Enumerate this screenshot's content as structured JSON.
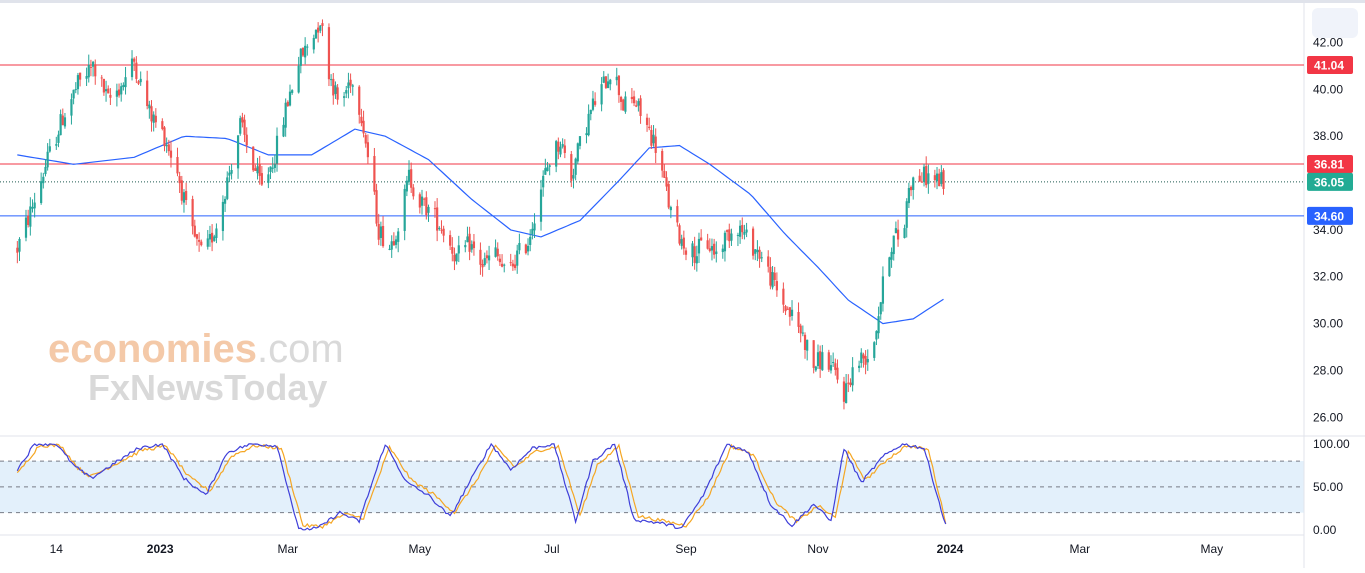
{
  "chart_data": {
    "type": "candlestick",
    "title": "",
    "price_axis": {
      "ticks": [
        "42.00",
        "40.00",
        "38.00",
        "36.00",
        "34.00",
        "32.00",
        "30.00",
        "28.00",
        "26.00"
      ],
      "tick_values": [
        42,
        40,
        38,
        36,
        34,
        32,
        30,
        28,
        26
      ],
      "ylim": [
        25.2,
        43.6
      ]
    },
    "horizontal_levels": [
      {
        "value": 41.04,
        "label": "41.04",
        "color": "#f23645"
      },
      {
        "value": 36.81,
        "label": "36.81",
        "color": "#f23645"
      },
      {
        "value": 34.6,
        "label": "34.60",
        "color": "#2962ff"
      }
    ],
    "last_price": {
      "value": 36.05,
      "label": "36.05",
      "color": "#22ab94"
    },
    "x_axis": {
      "labels": [
        {
          "text": "14",
          "date": "2022-11-14",
          "bold": false
        },
        {
          "text": "2023",
          "date": "2023-01-01",
          "bold": true
        },
        {
          "text": "Mar",
          "date": "2023-03-01",
          "bold": false
        },
        {
          "text": "May",
          "date": "2023-05-01",
          "bold": false
        },
        {
          "text": "Jul",
          "date": "2023-07-01",
          "bold": false
        },
        {
          "text": "Sep",
          "date": "2023-09-01",
          "bold": false
        },
        {
          "text": "Nov",
          "date": "2023-11-01",
          "bold": false
        },
        {
          "text": "2024",
          "date": "2024-01-01",
          "bold": true
        },
        {
          "text": "Mar",
          "date": "2024-03-01",
          "bold": false
        },
        {
          "text": "May",
          "date": "2024-05-01",
          "bold": false
        }
      ]
    },
    "price_path": [
      [
        "2022-10-27",
        33.2
      ],
      [
        "2022-11-03",
        35.0
      ],
      [
        "2022-11-10",
        37.0
      ],
      [
        "2022-11-17",
        38.8
      ],
      [
        "2022-11-24",
        40.2
      ],
      [
        "2022-12-01",
        41.0
      ],
      [
        "2022-12-08",
        39.5
      ],
      [
        "2022-12-15",
        40.3
      ],
      [
        "2022-12-20",
        41.2
      ],
      [
        "2022-12-27",
        39.0
      ],
      [
        "2023-01-03",
        38.0
      ],
      [
        "2023-01-09",
        36.5
      ],
      [
        "2023-01-15",
        34.0
      ],
      [
        "2023-01-21",
        32.8
      ],
      [
        "2023-01-27",
        34.2
      ],
      [
        "2023-02-02",
        36.5
      ],
      [
        "2023-02-07",
        38.5
      ],
      [
        "2023-02-12",
        37.0
      ],
      [
        "2023-02-17",
        35.8
      ],
      [
        "2023-02-23",
        37.2
      ],
      [
        "2023-03-01",
        39.5
      ],
      [
        "2023-03-06",
        41.2
      ],
      [
        "2023-03-11",
        42.0
      ],
      [
        "2023-03-16",
        43.0
      ],
      [
        "2023-03-20",
        40.8
      ],
      [
        "2023-03-25",
        39.2
      ],
      [
        "2023-03-30",
        40.5
      ],
      [
        "2023-04-04",
        39.0
      ],
      [
        "2023-04-08",
        36.5
      ],
      [
        "2023-04-12",
        34.0
      ],
      [
        "2023-04-17",
        33.3
      ],
      [
        "2023-04-22",
        34.5
      ],
      [
        "2023-04-26",
        36.3
      ],
      [
        "2023-05-01",
        35.2
      ],
      [
        "2023-05-06",
        34.8
      ],
      [
        "2023-05-12",
        34.0
      ],
      [
        "2023-05-18",
        32.8
      ],
      [
        "2023-05-24",
        33.4
      ],
      [
        "2023-05-30",
        32.5
      ],
      [
        "2023-06-05",
        33.0
      ],
      [
        "2023-06-10",
        32.0
      ],
      [
        "2023-06-15",
        32.9
      ],
      [
        "2023-06-20",
        33.5
      ],
      [
        "2023-06-25",
        35.5
      ],
      [
        "2023-06-30",
        37.0
      ],
      [
        "2023-07-05",
        37.8
      ],
      [
        "2023-07-10",
        36.3
      ],
      [
        "2023-07-15",
        38.0
      ],
      [
        "2023-07-20",
        39.3
      ],
      [
        "2023-07-25",
        40.2
      ],
      [
        "2023-07-29",
        41.0
      ],
      [
        "2023-08-03",
        39.3
      ],
      [
        "2023-08-08",
        39.5
      ],
      [
        "2023-08-13",
        38.6
      ],
      [
        "2023-08-18",
        37.6
      ],
      [
        "2023-08-22",
        36.0
      ],
      [
        "2023-08-26",
        34.3
      ],
      [
        "2023-08-31",
        33.4
      ],
      [
        "2023-09-05",
        33.0
      ],
      [
        "2023-09-10",
        33.5
      ],
      [
        "2023-09-15",
        33.0
      ],
      [
        "2023-09-20",
        33.8
      ],
      [
        "2023-09-25",
        34.2
      ],
      [
        "2023-09-30",
        33.5
      ],
      [
        "2023-10-05",
        33.0
      ],
      [
        "2023-10-10",
        32.0
      ],
      [
        "2023-10-15",
        31.0
      ],
      [
        "2023-10-20",
        30.3
      ],
      [
        "2023-10-25",
        29.5
      ],
      [
        "2023-10-30",
        28.2
      ],
      [
        "2023-11-04",
        28.6
      ],
      [
        "2023-11-09",
        27.8
      ],
      [
        "2023-11-13",
        27.0
      ],
      [
        "2023-11-17",
        28.0
      ],
      [
        "2023-11-21",
        28.5
      ],
      [
        "2023-11-26",
        28.8
      ],
      [
        "2023-12-01",
        31.6
      ],
      [
        "2023-12-04",
        33.2
      ],
      [
        "2023-12-07",
        33.8
      ],
      [
        "2023-12-10",
        33.4
      ],
      [
        "2023-12-13",
        36.0
      ],
      [
        "2023-12-17",
        36.2
      ],
      [
        "2023-12-21",
        36.3
      ],
      [
        "2023-12-25",
        36.2
      ],
      [
        "2023-12-29",
        36.05
      ]
    ],
    "moving_average": [
      [
        "2022-10-27",
        37.2
      ],
      [
        "2022-11-22",
        36.8
      ],
      [
        "2022-12-20",
        37.1
      ],
      [
        "2023-01-12",
        38.0
      ],
      [
        "2023-02-01",
        37.9
      ],
      [
        "2023-02-20",
        37.2
      ],
      [
        "2023-03-12",
        37.2
      ],
      [
        "2023-04-01",
        38.3
      ],
      [
        "2023-04-15",
        38.0
      ],
      [
        "2023-05-05",
        37.0
      ],
      [
        "2023-05-25",
        35.3
      ],
      [
        "2023-06-12",
        34.0
      ],
      [
        "2023-06-26",
        33.7
      ],
      [
        "2023-07-14",
        34.4
      ],
      [
        "2023-08-01",
        36.1
      ],
      [
        "2023-08-15",
        37.5
      ],
      [
        "2023-08-29",
        37.6
      ],
      [
        "2023-09-12",
        36.8
      ],
      [
        "2023-10-01",
        35.5
      ],
      [
        "2023-10-17",
        33.8
      ],
      [
        "2023-11-01",
        32.4
      ],
      [
        "2023-11-15",
        31.0
      ],
      [
        "2023-12-01",
        30.0
      ],
      [
        "2023-12-15",
        30.2
      ],
      [
        "2023-12-30",
        31.1
      ]
    ],
    "oscillator": {
      "ticks": [
        "100.00",
        "50.00",
        "0.00"
      ],
      "tick_values": [
        100,
        50,
        0
      ],
      "ylim": [
        -6,
        108
      ],
      "bands": [
        20,
        50,
        80
      ],
      "fast_line": [
        [
          "2022-10-27",
          70
        ],
        [
          "2022-11-04",
          100
        ],
        [
          "2022-11-14",
          100
        ],
        [
          "2022-11-22",
          75
        ],
        [
          "2022-11-30",
          60
        ],
        [
          "2022-12-22",
          95
        ],
        [
          "2023-01-02",
          100
        ],
        [
          "2023-01-12",
          60
        ],
        [
          "2023-01-22",
          40
        ],
        [
          "2023-02-01",
          90
        ],
        [
          "2023-02-12",
          100
        ],
        [
          "2023-02-24",
          98
        ],
        [
          "2023-03-06",
          0
        ],
        [
          "2023-03-15",
          2
        ],
        [
          "2023-03-25",
          20
        ],
        [
          "2023-04-03",
          10
        ],
        [
          "2023-04-15",
          100
        ],
        [
          "2023-04-25",
          55
        ],
        [
          "2023-05-05",
          40
        ],
        [
          "2023-05-15",
          15
        ],
        [
          "2023-05-25",
          60
        ],
        [
          "2023-06-03",
          100
        ],
        [
          "2023-06-12",
          70
        ],
        [
          "2023-06-22",
          95
        ],
        [
          "2023-07-02",
          100
        ],
        [
          "2023-07-12",
          10
        ],
        [
          "2023-07-20",
          80
        ],
        [
          "2023-07-30",
          100
        ],
        [
          "2023-08-08",
          12
        ],
        [
          "2023-08-20",
          8
        ],
        [
          "2023-08-30",
          2
        ],
        [
          "2023-09-09",
          40
        ],
        [
          "2023-09-20",
          100
        ],
        [
          "2023-09-30",
          90
        ],
        [
          "2023-10-10",
          30
        ],
        [
          "2023-10-20",
          5
        ],
        [
          "2023-10-30",
          30
        ],
        [
          "2023-11-07",
          10
        ],
        [
          "2023-11-13",
          95
        ],
        [
          "2023-11-21",
          55
        ],
        [
          "2023-12-01",
          85
        ],
        [
          "2023-12-10",
          100
        ],
        [
          "2023-12-20",
          95
        ],
        [
          "2023-12-30",
          5
        ]
      ],
      "slow_line": [
        [
          "2022-10-27",
          65
        ],
        [
          "2022-11-06",
          98
        ],
        [
          "2022-11-16",
          98
        ],
        [
          "2022-11-24",
          72
        ],
        [
          "2022-11-30",
          62
        ],
        [
          "2022-12-24",
          93
        ],
        [
          "2023-01-04",
          97
        ],
        [
          "2023-01-14",
          62
        ],
        [
          "2023-01-24",
          45
        ],
        [
          "2023-02-03",
          86
        ],
        [
          "2023-02-14",
          98
        ],
        [
          "2023-02-26",
          95
        ],
        [
          "2023-03-08",
          5
        ],
        [
          "2023-03-17",
          4
        ],
        [
          "2023-03-27",
          18
        ],
        [
          "2023-04-05",
          14
        ],
        [
          "2023-04-17",
          96
        ],
        [
          "2023-04-27",
          58
        ],
        [
          "2023-05-07",
          42
        ],
        [
          "2023-05-17",
          20
        ],
        [
          "2023-05-27",
          57
        ],
        [
          "2023-06-05",
          97
        ],
        [
          "2023-06-14",
          73
        ],
        [
          "2023-06-24",
          92
        ],
        [
          "2023-07-04",
          97
        ],
        [
          "2023-07-14",
          16
        ],
        [
          "2023-07-22",
          76
        ],
        [
          "2023-08-01",
          97
        ],
        [
          "2023-08-10",
          16
        ],
        [
          "2023-08-22",
          10
        ],
        [
          "2023-09-01",
          5
        ],
        [
          "2023-09-11",
          37
        ],
        [
          "2023-09-22",
          97
        ],
        [
          "2023-10-02",
          88
        ],
        [
          "2023-10-12",
          34
        ],
        [
          "2023-10-22",
          9
        ],
        [
          "2023-11-01",
          28
        ],
        [
          "2023-11-09",
          14
        ],
        [
          "2023-11-15",
          90
        ],
        [
          "2023-11-23",
          58
        ],
        [
          "2023-12-03",
          82
        ],
        [
          "2023-12-12",
          98
        ],
        [
          "2023-12-22",
          93
        ],
        [
          "2023-12-30",
          9
        ]
      ]
    }
  },
  "watermark": {
    "brand_colored": "economies",
    "brand_suffix": ".com",
    "sub_brand": "FxNewsToday"
  },
  "colors": {
    "up": "#26a69a",
    "down": "#ef5350",
    "ma": "#2962ff",
    "fast": "#3f3fd9",
    "slow": "#f5a623",
    "band_fill": "#e3f0fb"
  }
}
